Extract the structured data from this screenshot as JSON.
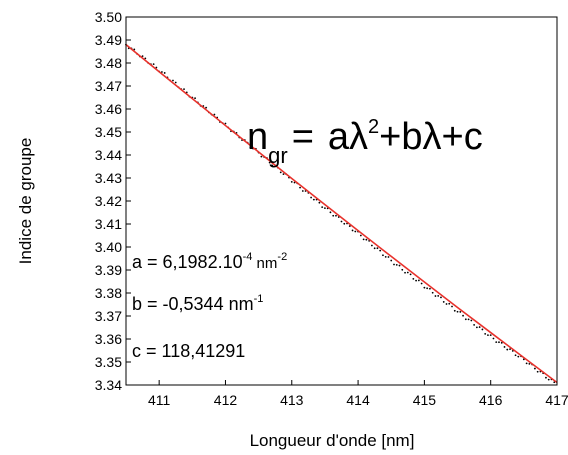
{
  "chart_data": {
    "type": "line",
    "title": "",
    "xlabel": "Longueur d'onde [nm]",
    "ylabel": "Indice de groupe",
    "xlim": [
      410.5,
      417.0
    ],
    "ylim": [
      3.34,
      3.5
    ],
    "x_ticks": [
      411,
      412,
      413,
      414,
      415,
      416,
      417
    ],
    "y_ticks": [
      3.34,
      3.35,
      3.36,
      3.37,
      3.38,
      3.39,
      3.4,
      3.41,
      3.42,
      3.43,
      3.44,
      3.45,
      3.46,
      3.47,
      3.48,
      3.49,
      3.5
    ],
    "x_tick_labels": [
      "411",
      "412",
      "413",
      "414",
      "415",
      "416",
      "417"
    ],
    "y_tick_labels": [
      "3.34",
      "3.35",
      "3.36",
      "3.37",
      "3.38",
      "3.39",
      "3.40",
      "3.41",
      "3.42",
      "3.43",
      "3.44",
      "3.45",
      "3.46",
      "3.47",
      "3.48",
      "3.49",
      "3.50"
    ],
    "grid": false,
    "series": [
      {
        "style": "dotted",
        "color": "#000000",
        "x": [
          410.5,
          411.0,
          411.5,
          412.0,
          412.5,
          413.0,
          413.5,
          414.0,
          414.5,
          415.0,
          415.5,
          416.0,
          416.5,
          417.0
        ],
        "y": [
          3.488,
          3.477,
          3.465,
          3.453,
          3.441,
          3.429,
          3.417,
          3.406,
          3.394,
          3.383,
          3.372,
          3.361,
          3.351,
          3.34
        ]
      },
      {
        "style": "solid",
        "color": "#e8322c",
        "x": [
          410.5,
          411.0,
          411.5,
          412.0,
          412.5,
          413.0,
          413.5,
          414.0,
          414.5,
          415.0,
          415.5,
          416.0,
          416.5,
          417.0
        ],
        "y": [
          3.488,
          3.4762,
          3.4645,
          3.4528,
          3.4413,
          3.4298,
          3.4184,
          3.4071,
          3.3959,
          3.3848,
          3.3737,
          3.3628,
          3.3519,
          3.3411
        ]
      }
    ],
    "annotations": {
      "formula": {
        "lhs": "n",
        "lhs_sub": "gr",
        "eq": "=",
        "t1": "aλ",
        "t1_sup": "2",
        "rest": "+bλ+c"
      },
      "a": {
        "prefix": "a = 6,1982.10",
        "exp": "-4",
        "unit": " nm",
        "unit_exp": "-2"
      },
      "b": {
        "prefix": "b = -0,5344 nm",
        "unit_exp": "-1"
      },
      "c": {
        "text": "c = 118,41291"
      }
    }
  }
}
